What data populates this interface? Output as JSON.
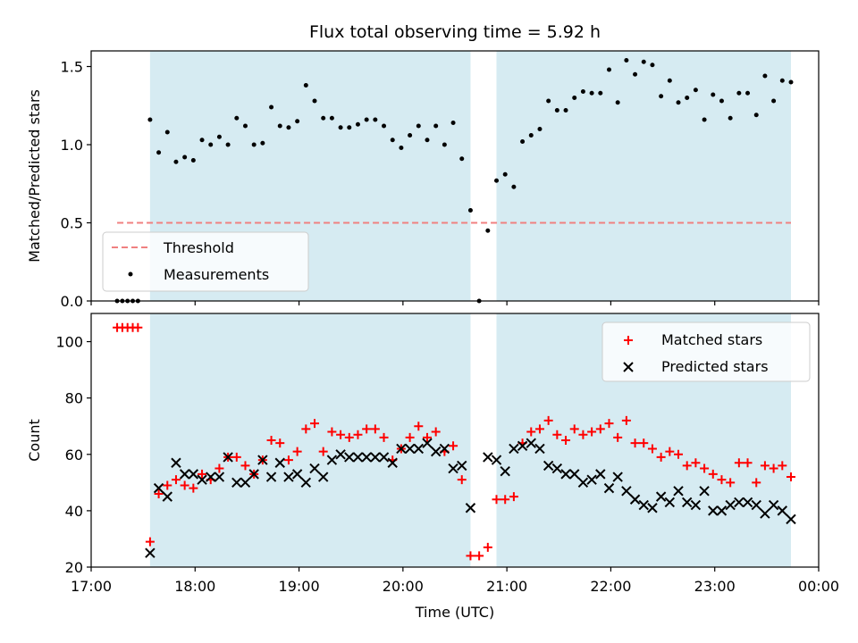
{
  "chart_data": [
    {
      "type": "scatter",
      "title": "Flux total observing time = 5.92 h",
      "ylabel": "Matched/Predicted stars",
      "xlabel": "",
      "xlim": [
        "17:00",
        "00:00"
      ],
      "ylim": [
        0,
        1.6
      ],
      "yticks": [
        "0.0",
        "0.5",
        "1.0",
        "1.5"
      ],
      "shaded_intervals": [
        [
          "17:34",
          "20:39"
        ],
        [
          "20:54",
          "23:44"
        ]
      ],
      "shade_color": "#add8e6",
      "threshold": {
        "name": "Threshold",
        "value": 0.5,
        "x_range": [
          "17:15",
          "23:44"
        ],
        "color": "#f08080"
      },
      "series": [
        {
          "name": "Measurements",
          "color": "#000000",
          "points": [
            [
              "17:15",
              0.0
            ],
            [
              "17:18",
              0.0
            ],
            [
              "17:21",
              0.0
            ],
            [
              "17:24",
              0.0
            ],
            [
              "17:27",
              0.0
            ],
            [
              "17:34",
              1.16
            ],
            [
              "17:39",
              0.95
            ],
            [
              "17:44",
              1.08
            ],
            [
              "17:49",
              0.89
            ],
            [
              "17:54",
              0.92
            ],
            [
              "17:59",
              0.9
            ],
            [
              "18:04",
              1.03
            ],
            [
              "18:09",
              1.0
            ],
            [
              "18:14",
              1.05
            ],
            [
              "18:19",
              1.0
            ],
            [
              "18:24",
              1.17
            ],
            [
              "18:29",
              1.12
            ],
            [
              "18:34",
              1.0
            ],
            [
              "18:39",
              1.01
            ],
            [
              "18:44",
              1.24
            ],
            [
              "18:49",
              1.12
            ],
            [
              "18:54",
              1.11
            ],
            [
              "18:59",
              1.15
            ],
            [
              "19:04",
              1.38
            ],
            [
              "19:09",
              1.28
            ],
            [
              "19:14",
              1.17
            ],
            [
              "19:19",
              1.17
            ],
            [
              "19:24",
              1.11
            ],
            [
              "19:29",
              1.11
            ],
            [
              "19:34",
              1.13
            ],
            [
              "19:39",
              1.16
            ],
            [
              "19:44",
              1.16
            ],
            [
              "19:49",
              1.12
            ],
            [
              "19:54",
              1.03
            ],
            [
              "19:59",
              0.98
            ],
            [
              "20:04",
              1.06
            ],
            [
              "20:09",
              1.12
            ],
            [
              "20:14",
              1.03
            ],
            [
              "20:19",
              1.12
            ],
            [
              "20:24",
              1.0
            ],
            [
              "20:29",
              1.14
            ],
            [
              "20:34",
              0.91
            ],
            [
              "20:39",
              0.58
            ],
            [
              "20:44",
              0.0
            ],
            [
              "20:49",
              0.45
            ],
            [
              "20:54",
              0.77
            ],
            [
              "20:59",
              0.81
            ],
            [
              "21:04",
              0.73
            ],
            [
              "21:09",
              1.02
            ],
            [
              "21:14",
              1.06
            ],
            [
              "21:19",
              1.1
            ],
            [
              "21:24",
              1.28
            ],
            [
              "21:29",
              1.22
            ],
            [
              "21:34",
              1.22
            ],
            [
              "21:39",
              1.3
            ],
            [
              "21:44",
              1.34
            ],
            [
              "21:49",
              1.33
            ],
            [
              "21:54",
              1.33
            ],
            [
              "21:59",
              1.48
            ],
            [
              "22:04",
              1.27
            ],
            [
              "22:09",
              1.54
            ],
            [
              "22:14",
              1.45
            ],
            [
              "22:19",
              1.53
            ],
            [
              "22:24",
              1.51
            ],
            [
              "22:29",
              1.31
            ],
            [
              "22:34",
              1.41
            ],
            [
              "22:39",
              1.27
            ],
            [
              "22:44",
              1.3
            ],
            [
              "22:49",
              1.35
            ],
            [
              "22:54",
              1.16
            ],
            [
              "22:59",
              1.32
            ],
            [
              "23:04",
              1.28
            ],
            [
              "23:09",
              1.17
            ],
            [
              "23:14",
              1.33
            ],
            [
              "23:19",
              1.33
            ],
            [
              "23:24",
              1.19
            ],
            [
              "23:29",
              1.44
            ],
            [
              "23:34",
              1.28
            ],
            [
              "23:39",
              1.41
            ],
            [
              "23:44",
              1.4
            ]
          ]
        }
      ],
      "legend": {
        "placement": "lower-left",
        "entries": [
          "Threshold",
          "Measurements"
        ]
      }
    },
    {
      "type": "scatter",
      "title": "",
      "ylabel": "Count",
      "xlabel": "Time (UTC)",
      "xlim": [
        "17:00",
        "00:00"
      ],
      "ylim": [
        20,
        110
      ],
      "xticks": [
        "17:00",
        "18:00",
        "19:00",
        "20:00",
        "21:00",
        "22:00",
        "23:00",
        "00:00"
      ],
      "yticks": [
        "20",
        "40",
        "60",
        "80",
        "100"
      ],
      "shaded_intervals": [
        [
          "17:34",
          "20:39"
        ],
        [
          "20:54",
          "23:44"
        ]
      ],
      "shade_color": "#add8e6",
      "series": [
        {
          "name": "Matched stars",
          "marker": "+",
          "color": "#ff0000",
          "points": [
            [
              "17:15",
              105
            ],
            [
              "17:18",
              105
            ],
            [
              "17:21",
              105
            ],
            [
              "17:24",
              105
            ],
            [
              "17:27",
              105
            ],
            [
              "17:34",
              29
            ],
            [
              "17:39",
              46
            ],
            [
              "17:44",
              49
            ],
            [
              "17:49",
              51
            ],
            [
              "17:54",
              49
            ],
            [
              "17:59",
              48
            ],
            [
              "18:04",
              53
            ],
            [
              "18:09",
              51
            ],
            [
              "18:14",
              55
            ],
            [
              "18:19",
              59
            ],
            [
              "18:24",
              59
            ],
            [
              "18:29",
              56
            ],
            [
              "18:34",
              53
            ],
            [
              "18:39",
              58
            ],
            [
              "18:44",
              65
            ],
            [
              "18:49",
              64
            ],
            [
              "18:54",
              58
            ],
            [
              "18:59",
              61
            ],
            [
              "19:04",
              69
            ],
            [
              "19:09",
              71
            ],
            [
              "19:14",
              61
            ],
            [
              "19:19",
              68
            ],
            [
              "19:24",
              67
            ],
            [
              "19:29",
              66
            ],
            [
              "19:34",
              67
            ],
            [
              "19:39",
              69
            ],
            [
              "19:44",
              69
            ],
            [
              "19:49",
              66
            ],
            [
              "19:54",
              58
            ],
            [
              "19:59",
              62
            ],
            [
              "20:04",
              66
            ],
            [
              "20:09",
              70
            ],
            [
              "20:14",
              66
            ],
            [
              "20:19",
              68
            ],
            [
              "20:24",
              61
            ],
            [
              "20:29",
              63
            ],
            [
              "20:34",
              51
            ],
            [
              "20:39",
              24
            ],
            [
              "20:44",
              24
            ],
            [
              "20:49",
              27
            ],
            [
              "20:54",
              44
            ],
            [
              "20:59",
              44
            ],
            [
              "21:04",
              45
            ],
            [
              "21:09",
              64
            ],
            [
              "21:14",
              68
            ],
            [
              "21:19",
              69
            ],
            [
              "21:24",
              72
            ],
            [
              "21:29",
              67
            ],
            [
              "21:34",
              65
            ],
            [
              "21:39",
              69
            ],
            [
              "21:44",
              67
            ],
            [
              "21:49",
              68
            ],
            [
              "21:54",
              69
            ],
            [
              "21:59",
              71
            ],
            [
              "22:04",
              66
            ],
            [
              "22:09",
              72
            ],
            [
              "22:14",
              64
            ],
            [
              "22:19",
              64
            ],
            [
              "22:24",
              62
            ],
            [
              "22:29",
              59
            ],
            [
              "22:34",
              61
            ],
            [
              "22:39",
              60
            ],
            [
              "22:44",
              56
            ],
            [
              "22:49",
              57
            ],
            [
              "22:54",
              55
            ],
            [
              "22:59",
              53
            ],
            [
              "23:04",
              51
            ],
            [
              "23:09",
              50
            ],
            [
              "23:14",
              57
            ],
            [
              "23:19",
              57
            ],
            [
              "23:24",
              50
            ],
            [
              "23:29",
              56
            ],
            [
              "23:34",
              55
            ],
            [
              "23:39",
              56
            ],
            [
              "23:44",
              52
            ]
          ]
        },
        {
          "name": "Predicted stars",
          "marker": "x",
          "color": "#000000",
          "points": [
            [
              "17:34",
              25
            ],
            [
              "17:39",
              48
            ],
            [
              "17:44",
              45
            ],
            [
              "17:49",
              57
            ],
            [
              "17:54",
              53
            ],
            [
              "17:59",
              53
            ],
            [
              "18:04",
              51
            ],
            [
              "18:09",
              52
            ],
            [
              "18:14",
              52
            ],
            [
              "18:19",
              59
            ],
            [
              "18:24",
              50
            ],
            [
              "18:29",
              50
            ],
            [
              "18:34",
              53
            ],
            [
              "18:39",
              58
            ],
            [
              "18:44",
              52
            ],
            [
              "18:49",
              57
            ],
            [
              "18:54",
              52
            ],
            [
              "18:59",
              53
            ],
            [
              "19:04",
              50
            ],
            [
              "19:09",
              55
            ],
            [
              "19:14",
              52
            ],
            [
              "19:19",
              58
            ],
            [
              "19:24",
              60
            ],
            [
              "19:29",
              59
            ],
            [
              "19:34",
              59
            ],
            [
              "19:39",
              59
            ],
            [
              "19:44",
              59
            ],
            [
              "19:49",
              59
            ],
            [
              "19:54",
              57
            ],
            [
              "19:59",
              62
            ],
            [
              "20:04",
              62
            ],
            [
              "20:09",
              62
            ],
            [
              "20:14",
              64
            ],
            [
              "20:19",
              61
            ],
            [
              "20:24",
              62
            ],
            [
              "20:29",
              55
            ],
            [
              "20:34",
              56
            ],
            [
              "20:39",
              41
            ],
            [
              "20:49",
              59
            ],
            [
              "20:54",
              58
            ],
            [
              "20:59",
              54
            ],
            [
              "21:04",
              62
            ],
            [
              "21:09",
              63
            ],
            [
              "21:14",
              64
            ],
            [
              "21:19",
              62
            ],
            [
              "21:24",
              56
            ],
            [
              "21:29",
              55
            ],
            [
              "21:34",
              53
            ],
            [
              "21:39",
              53
            ],
            [
              "21:44",
              50
            ],
            [
              "21:49",
              51
            ],
            [
              "21:54",
              53
            ],
            [
              "21:59",
              48
            ],
            [
              "22:04",
              52
            ],
            [
              "22:09",
              47
            ],
            [
              "22:14",
              44
            ],
            [
              "22:19",
              42
            ],
            [
              "22:24",
              41
            ],
            [
              "22:29",
              45
            ],
            [
              "22:34",
              43
            ],
            [
              "22:39",
              47
            ],
            [
              "22:44",
              43
            ],
            [
              "22:49",
              42
            ],
            [
              "22:54",
              47
            ],
            [
              "22:59",
              40
            ],
            [
              "23:04",
              40
            ],
            [
              "23:09",
              42
            ],
            [
              "23:14",
              43
            ],
            [
              "23:19",
              43
            ],
            [
              "23:24",
              42
            ],
            [
              "23:29",
              39
            ],
            [
              "23:34",
              42
            ],
            [
              "23:39",
              40
            ],
            [
              "23:44",
              37
            ]
          ]
        }
      ],
      "legend": {
        "placement": "top-right",
        "entries": [
          "Matched stars",
          "Predicted stars"
        ]
      }
    }
  ]
}
